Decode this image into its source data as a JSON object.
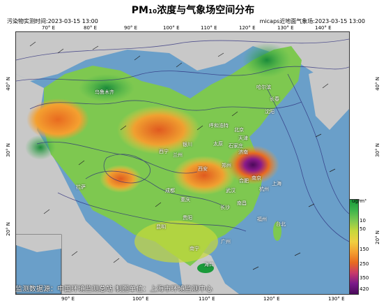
{
  "header": {
    "title": "PM₁₀浓度与气象场空间分布",
    "left_stamp": "污染物实测时间:2023-03-15 13:00",
    "right_stamp": "micaps近地面气象场:2023-03-15 13:00"
  },
  "axes": {
    "lon_top": [
      "70° E",
      "80° E",
      "90° E",
      "100° E",
      "110° E",
      "120° E",
      "130° E",
      "140° E"
    ],
    "lon_bottom": [
      "90° E",
      "100° E",
      "110° E",
      "120° E",
      "130° E"
    ],
    "lat_left": [
      "40° N",
      "30° N",
      "20° N"
    ],
    "lat_right": [
      "40° N",
      "30° N",
      "20° N"
    ]
  },
  "legend": {
    "unit": "ug/m³",
    "ticks": [
      "10",
      "50",
      "150",
      "250",
      "350",
      "420"
    ],
    "colors": [
      "#1a9a3a",
      "#3cb44b",
      "#7ec850",
      "#c8d83a",
      "#f0d040",
      "#f4a030",
      "#e86a20",
      "#c83a6a",
      "#7a1a8a",
      "#4a0a5a"
    ]
  },
  "cities": [
    "乌鲁木齐",
    "哈尔滨",
    "长春",
    "沈阳",
    "呼和浩特",
    "北京",
    "天津",
    "太原",
    "石家庄",
    "济南",
    "银川",
    "西宁",
    "兰州",
    "郑州",
    "西安",
    "合肥",
    "南京",
    "上海",
    "成都",
    "武汉",
    "杭州",
    "重庆",
    "长沙",
    "南昌",
    "拉萨",
    "贵阳",
    "福州",
    "昆明",
    "台北",
    "南宁",
    "广州",
    "海口"
  ],
  "footer": {
    "text": "监测数据源：中国环境监测总站  制图单位：上海市环境监测中心"
  }
}
